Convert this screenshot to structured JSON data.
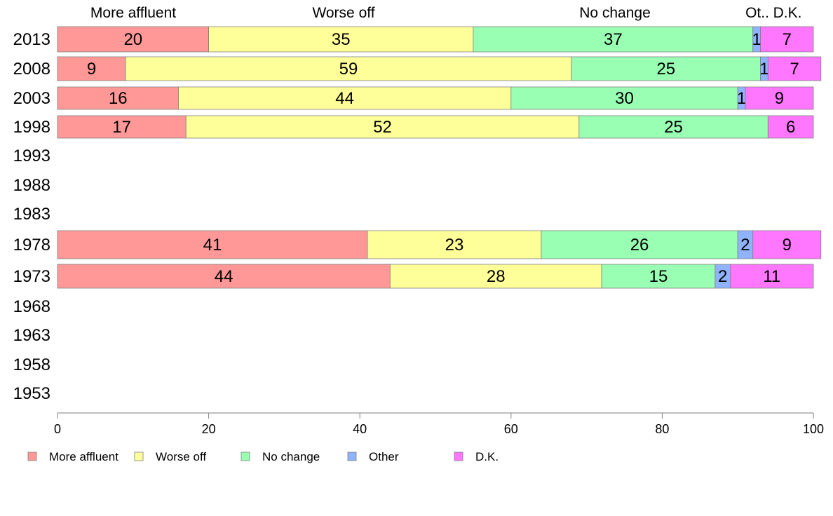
{
  "chart_data": {
    "type": "bar",
    "orientation": "horizontal",
    "stacked": true,
    "categories": [
      "2013",
      "2008",
      "2003",
      "1998",
      "1993",
      "1988",
      "1983",
      "1978",
      "1973",
      "1968",
      "1963",
      "1958",
      "1953"
    ],
    "series": [
      {
        "name": "More affluent",
        "color": "#ff9896",
        "values": [
          20,
          9,
          16,
          17,
          null,
          null,
          null,
          41,
          44,
          null,
          null,
          null,
          null
        ]
      },
      {
        "name": "Worse off",
        "color": "#ffff99",
        "values": [
          35,
          59,
          44,
          52,
          null,
          null,
          null,
          23,
          28,
          null,
          null,
          null,
          null
        ]
      },
      {
        "name": "No change",
        "color": "#98ffb3",
        "values": [
          37,
          25,
          30,
          25,
          null,
          null,
          null,
          26,
          15,
          null,
          null,
          null,
          null
        ]
      },
      {
        "name": "Other",
        "color": "#8fb3ff",
        "values": [
          1,
          1,
          1,
          null,
          null,
          null,
          null,
          2,
          2,
          null,
          null,
          null,
          null
        ]
      },
      {
        "name": "D.K.",
        "color": "#ff77ff",
        "values": [
          7,
          7,
          9,
          6,
          null,
          null,
          null,
          9,
          11,
          null,
          null,
          null,
          null
        ]
      }
    ],
    "top_labels": [
      "More affluent",
      "Worse off",
      "No change",
      "Ot..",
      "D.K."
    ],
    "xlim": [
      0,
      100
    ],
    "xticks": [
      0,
      20,
      40,
      60,
      80,
      100
    ],
    "grid": false,
    "legend_position": "bottom"
  }
}
